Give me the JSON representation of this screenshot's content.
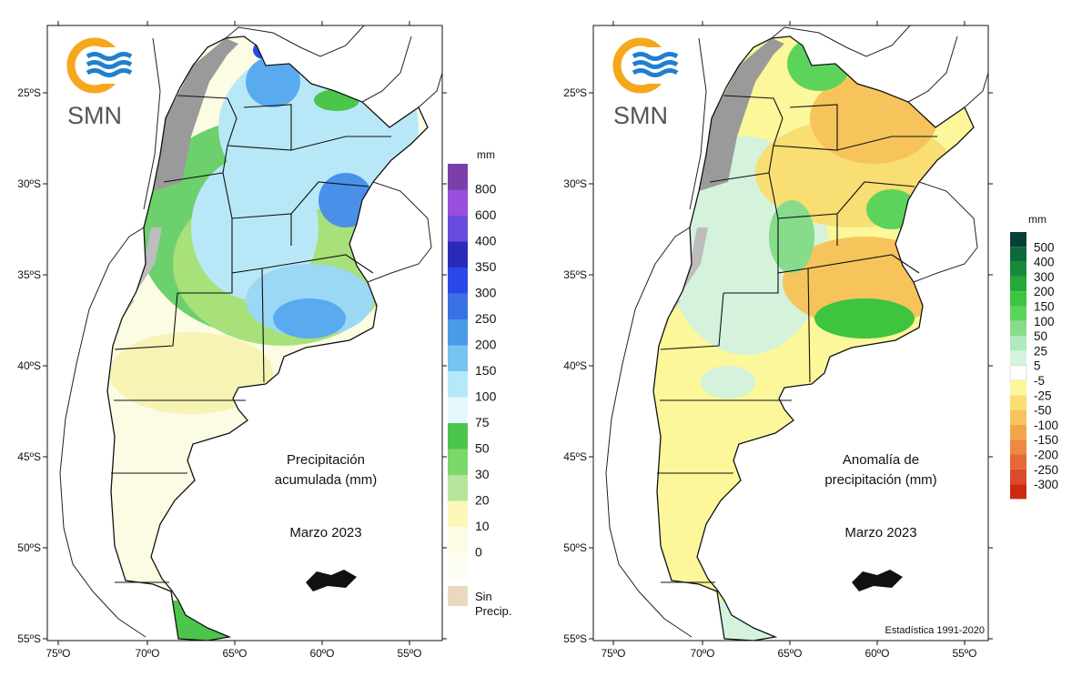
{
  "logo": {
    "text": "SMN",
    "ring_color": "#f5a81c",
    "wave_color": "#1f7fd0"
  },
  "axes": {
    "lat_labels": [
      "25ºS",
      "30ºS",
      "35ºS",
      "40ºS",
      "45ºS",
      "50ºS",
      "55ºS"
    ],
    "lon_labels": [
      "75ºO",
      "70ºO",
      "65ºO",
      "60ºO",
      "55ºO"
    ]
  },
  "panels": [
    {
      "title_line1": "Precipitación",
      "title_line2": "acumulada (mm)",
      "date": "Marzo 2023",
      "legend_unit": "mm",
      "legend_labels": [
        "800",
        "600",
        "400",
        "350",
        "300",
        "250",
        "200",
        "150",
        "100",
        "75",
        "50",
        "30",
        "20",
        "10",
        "0"
      ],
      "legend_colors": [
        "#7a3fa8",
        "#9a4ddf",
        "#6a4be0",
        "#2a2ab8",
        "#2a48e8",
        "#3a72e6",
        "#4a9ae8",
        "#76c4f2",
        "#b6e8fa",
        "#e6f8fc",
        "#4cc54c",
        "#7cd86a",
        "#b6e49a",
        "#fbf7b8",
        "#fdfbe6",
        "#fdfdf4"
      ],
      "legend_extra": {
        "line1": "Sin",
        "line2": "Precip.",
        "color": "#e8d9bf"
      }
    },
    {
      "title_line1": "Anomalía de",
      "title_line2": "precipitación (mm)",
      "date": "Marzo 2023",
      "legend_unit": "mm",
      "legend_labels": [
        "500",
        "400",
        "300",
        "200",
        "150",
        "100",
        "50",
        "25",
        "5",
        "-5",
        "-25",
        "-50",
        "-100",
        "-150",
        "-200",
        "-250",
        "-300"
      ],
      "legend_colors": [
        "#07403a",
        "#0d6a3a",
        "#178a3a",
        "#24a83a",
        "#3ec43e",
        "#5cd45c",
        "#86dc8a",
        "#b0e8c0",
        "#d4f2dc",
        "#ffffff",
        "#fbf79a",
        "#f9de74",
        "#f6c45a",
        "#f2a64a",
        "#ec8840",
        "#e66838",
        "#dc4a2c",
        "#cc2a10"
      ],
      "footnote": "Estadística 1991-2020"
    }
  ]
}
